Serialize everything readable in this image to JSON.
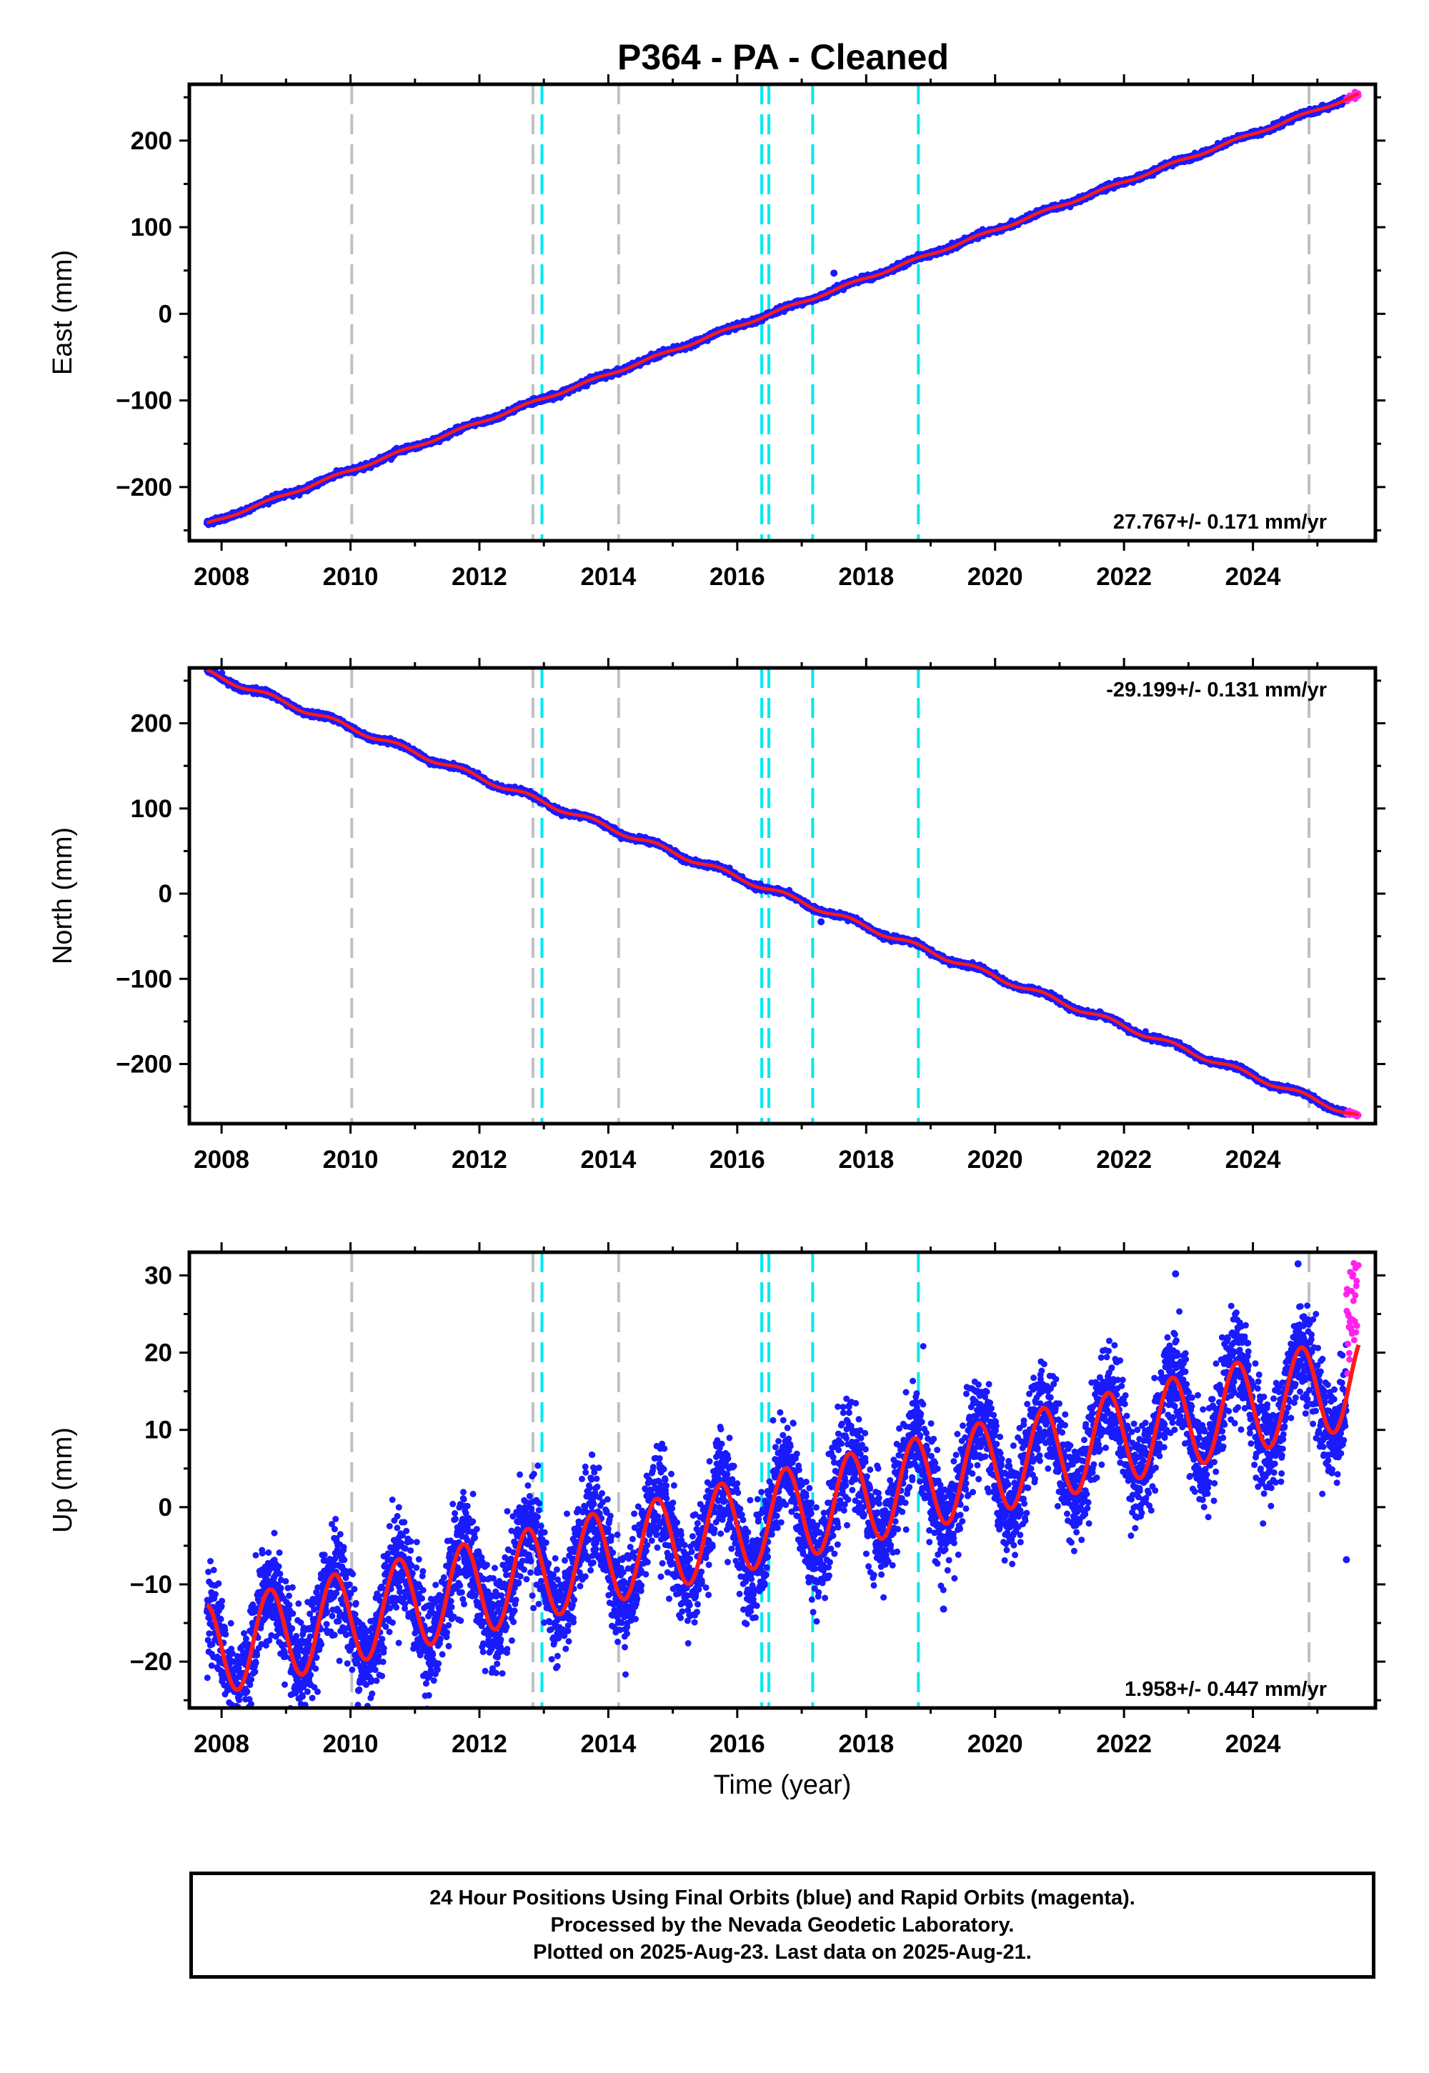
{
  "figure": {
    "title": "P364  - PA - Cleaned"
  },
  "colors": {
    "final_orbits": "#1a1aff",
    "rapid_orbits": "#ff22ee",
    "model_fit": "#ff1a1a",
    "equipment_change": "#c0c0c0",
    "earthquake": "#00e8f0"
  },
  "chart_data": [
    {
      "type": "scatter",
      "component": "east",
      "ylabel": "East (mm)",
      "xlabel": "",
      "xlim": [
        2007.5,
        2025.9
      ],
      "ylim": [
        -262,
        265
      ],
      "xticks": [
        2008,
        2010,
        2012,
        2014,
        2016,
        2018,
        2020,
        2022,
        2024
      ],
      "yticks": [
        -200,
        -100,
        0,
        100,
        200
      ],
      "rate_label": "27.767+/- 0.171 mm/yr",
      "rate_position": "bottom-right",
      "rate_mm_per_yr": 27.767,
      "intercept_mm_at_2016_5": -0.5,
      "seasonal_amplitude_mm": 1.5,
      "scatter_mm": 1.5,
      "start": 2007.77,
      "end_final": 2025.45,
      "end": 2025.64,
      "outliers": [
        {
          "x": 2017.5,
          "y": 47
        }
      ],
      "grid": false
    },
    {
      "type": "scatter",
      "component": "north",
      "ylabel": "North (mm)",
      "xlabel": "",
      "xlim": [
        2007.5,
        2025.9
      ],
      "ylim": [
        -270,
        265
      ],
      "xticks": [
        2008,
        2010,
        2012,
        2014,
        2016,
        2018,
        2020,
        2022,
        2024
      ],
      "yticks": [
        -200,
        -100,
        0,
        100,
        200
      ],
      "rate_label": "-29.199+/- 0.131 mm/yr",
      "rate_position": "top-right",
      "rate_mm_per_yr": -29.199,
      "intercept_mm_at_2016_5": 5,
      "seasonal_amplitude_mm": 3,
      "scatter_mm": 1.5,
      "start": 2007.77,
      "end_final": 2025.45,
      "end": 2025.64,
      "outliers": [
        {
          "x": 2017.3,
          "y": -33
        }
      ],
      "grid": false
    },
    {
      "type": "scatter",
      "component": "up",
      "ylabel": "Up (mm)",
      "xlabel": "Time (year)",
      "xlim": [
        2007.5,
        2025.9
      ],
      "ylim": [
        -26,
        33
      ],
      "xticks": [
        2008,
        2010,
        2012,
        2014,
        2016,
        2018,
        2020,
        2022,
        2024
      ],
      "yticks": [
        -20,
        -10,
        0,
        10,
        20,
        30
      ],
      "rate_label": "1.958+/- 0.447 mm/yr",
      "rate_position": "bottom-right",
      "rate_mm_per_yr": 1.958,
      "intercept_mm_at_2016_5": -1.5,
      "seasonal_amplitude_mm": 6,
      "scatter_mm": 3.2,
      "start": 2007.77,
      "end_final": 2025.45,
      "end": 2025.64,
      "outliers": [
        {
          "x": 2024.7,
          "y": 31.5
        },
        {
          "x": 2022.8,
          "y": 30.2
        },
        {
          "x": 2019.2,
          "y": -13.2
        },
        {
          "x": 2025.45,
          "y": -6.8
        }
      ],
      "grid": false
    }
  ],
  "equipment_changes": [
    2010.02,
    2012.83,
    2014.16,
    2024.87
  ],
  "earthquakes": [
    2012.97,
    2016.38,
    2016.49,
    2017.17,
    2018.81
  ],
  "footer": {
    "line1": "24 Hour Positions Using Final Orbits (blue) and Rapid Orbits (magenta).",
    "line2": "Processed by the Nevada Geodetic Laboratory.",
    "line3": "Plotted on 2025-Aug-23. Last data on 2025-Aug-21."
  }
}
